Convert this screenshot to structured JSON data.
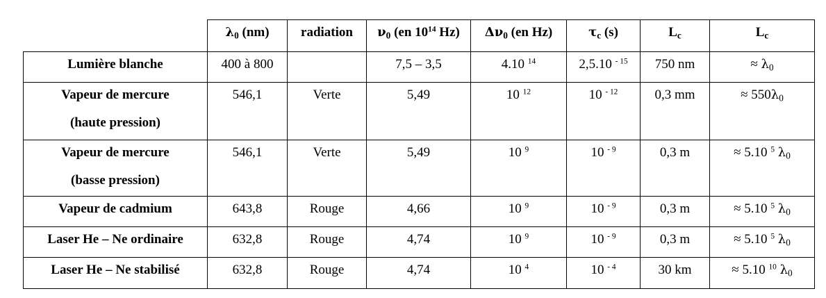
{
  "headers": [
    {
      "sym": "λ",
      "sub": "0",
      "rest": " (nm)"
    },
    {
      "sym": "",
      "sub": "",
      "rest": "radiation"
    },
    {
      "sym": "ν",
      "sub": "0",
      "rest": " (en 10",
      "sup": "14",
      "tail": " Hz)"
    },
    {
      "sym": "Δν",
      "sub": "0",
      "rest": " (en Hz)"
    },
    {
      "sym": "τ",
      "sub": "c",
      "rest": " (s)"
    },
    {
      "sym": "L",
      "sub": "c",
      "rest": ""
    },
    {
      "sym": "L",
      "sub": "c",
      "rest": ""
    }
  ],
  "rows": [
    {
      "label": [
        "Lumière blanche"
      ],
      "lambda0": "400 à 800",
      "radiation": "",
      "nu0": "7,5 – 3,5",
      "dnu_base": "4.10",
      "dnu_exp": "14",
      "tau_base": "2,5.10",
      "tau_exp": "- 15",
      "lc": "750 nm",
      "lc_rel_pre": "≈ ",
      "lc_rel_exp": "",
      "lc_rel_post": ""
    },
    {
      "label": [
        "Vapeur de mercure",
        "(haute pression)"
      ],
      "lambda0": "546,1",
      "radiation": "Verte",
      "nu0": "5,49",
      "dnu_base": "10",
      "dnu_exp": "12",
      "tau_base": "10",
      "tau_exp": "- 12",
      "lc": "0,3 mm",
      "lc_rel_pre": "≈ 550",
      "lc_rel_exp": "",
      "lc_rel_post": ""
    },
    {
      "label": [
        "Vapeur de mercure",
        "(basse pression)"
      ],
      "lambda0": "546,1",
      "radiation": "Verte",
      "nu0": "5,49",
      "dnu_base": "10",
      "dnu_exp": "9",
      "tau_base": "10",
      "tau_exp": "- 9",
      "lc": "0,3 m",
      "lc_rel_pre": "≈ 5.10",
      "lc_rel_exp": "5",
      "lc_rel_post": " "
    },
    {
      "label": [
        "Vapeur de cadmium"
      ],
      "lambda0": "643,8",
      "radiation": "Rouge",
      "nu0": "4,66",
      "dnu_base": "10",
      "dnu_exp": "9",
      "tau_base": "10",
      "tau_exp": "- 9",
      "lc": "0,3 m",
      "lc_rel_pre": "≈ 5.10",
      "lc_rel_exp": "5",
      "lc_rel_post": " "
    },
    {
      "label": [
        "Laser He – Ne ordinaire"
      ],
      "lambda0": "632,8",
      "radiation": "Rouge",
      "nu0": "4,74",
      "dnu_base": "10",
      "dnu_exp": "9",
      "tau_base": "10",
      "tau_exp": "- 9",
      "lc": "0,3 m",
      "lc_rel_pre": "≈ 5.10",
      "lc_rel_exp": "5",
      "lc_rel_post": " "
    },
    {
      "label": [
        "Laser He – Ne stabilisé"
      ],
      "lambda0": "632,8",
      "radiation": "Rouge",
      "nu0": "4,74",
      "dnu_base": "10",
      "dnu_exp": "4",
      "tau_base": "10",
      "tau_exp": "- 4",
      "lc": "30 km",
      "lc_rel_pre": "≈ 5.10",
      "lc_rel_exp": "10",
      "lc_rel_post": " "
    }
  ],
  "lambda_symbol": "λ",
  "lambda_sub": "0"
}
